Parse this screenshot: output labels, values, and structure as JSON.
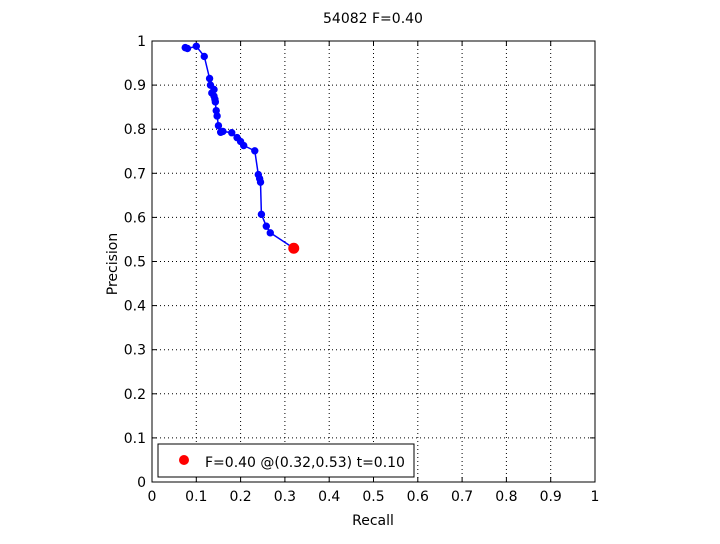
{
  "chart_data": {
    "type": "line",
    "title": "54082 F=0.40",
    "xlabel": "Recall",
    "ylabel": "Precision",
    "xlim": [
      0,
      1
    ],
    "ylim": [
      0,
      1
    ],
    "xticks": [
      "0",
      "0.1",
      "0.2",
      "0.3",
      "0.4",
      "0.5",
      "0.6",
      "0.7",
      "0.8",
      "0.9",
      "1"
    ],
    "yticks": [
      "0",
      "0.1",
      "0.2",
      "0.3",
      "0.4",
      "0.5",
      "0.6",
      "0.7",
      "0.8",
      "0.9",
      "1"
    ],
    "grid": true,
    "grid_style": "dotted",
    "series": [
      {
        "color": "#0000ff",
        "marker": "circle",
        "x": [
          0.075,
          0.08,
          0.1,
          0.118,
          0.13,
          0.132,
          0.135,
          0.14,
          0.14,
          0.142,
          0.143,
          0.145,
          0.147,
          0.15,
          0.155,
          0.16,
          0.18,
          0.192,
          0.2,
          0.207,
          0.232,
          0.24,
          0.243,
          0.245,
          0.247,
          0.258,
          0.267
        ],
        "y": [
          0.985,
          0.983,
          0.988,
          0.965,
          0.915,
          0.9,
          0.882,
          0.89,
          0.875,
          0.868,
          0.862,
          0.842,
          0.83,
          0.808,
          0.793,
          0.795,
          0.792,
          0.781,
          0.772,
          0.763,
          0.751,
          0.697,
          0.688,
          0.68,
          0.607,
          0.58,
          0.565
        ]
      }
    ],
    "best_point": {
      "x": 0.32,
      "y": 0.53,
      "color": "#ff0000"
    },
    "legend": {
      "placement": "bottom-left",
      "text": "F=0.40 @(0.32,0.53) t=0.10",
      "marker_color": "#ff0000"
    }
  }
}
